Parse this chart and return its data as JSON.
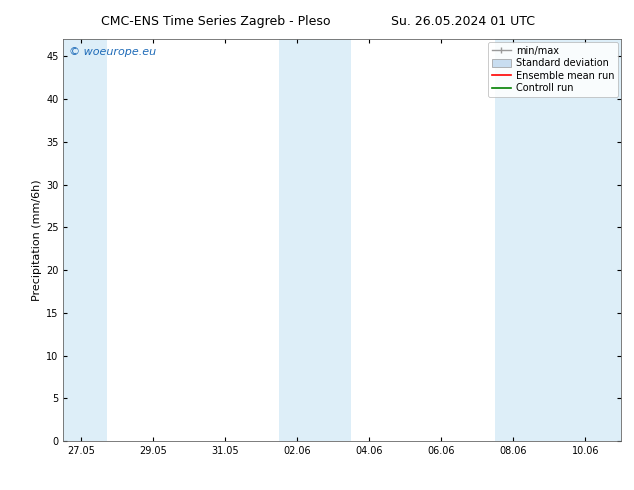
{
  "title": "CMC-ENS Time Series Zagreb - Pleso",
  "title2": "Su. 26.05.2024 01 UTC",
  "ylabel": "Precipitation (mm/6h)",
  "ylim": [
    0,
    47
  ],
  "yticks": [
    0,
    5,
    10,
    15,
    20,
    25,
    30,
    35,
    40,
    45
  ],
  "xtick_labels": [
    "27.05",
    "29.05",
    "31.05",
    "02.06",
    "04.06",
    "06.06",
    "08.06",
    "10.06"
  ],
  "xtick_positions": [
    0,
    2,
    4,
    6,
    8,
    10,
    12,
    14
  ],
  "xlim": [
    -0.5,
    15.0
  ],
  "x_total_days": 14.5,
  "shaded_bands": [
    {
      "x_start": -0.5,
      "x_end": 0.7
    },
    {
      "x_start": 5.5,
      "x_end": 7.5
    },
    {
      "x_start": 11.5,
      "x_end": 15.0
    }
  ],
  "band_color": "#ddeef8",
  "background_color": "#ffffff",
  "watermark_text": "© woeurope.eu",
  "watermark_color": "#1e6bb8",
  "legend_entries": [
    "min/max",
    "Standard deviation",
    "Ensemble mean run",
    "Controll run"
  ],
  "minmax_color": "#999999",
  "std_facecolor": "#c8ddf0",
  "std_edgecolor": "#999999",
  "ensemble_color": "#ff0000",
  "control_color": "#008000",
  "title_fontsize": 9,
  "axis_label_fontsize": 8,
  "tick_fontsize": 7,
  "legend_fontsize": 7,
  "watermark_fontsize": 8
}
